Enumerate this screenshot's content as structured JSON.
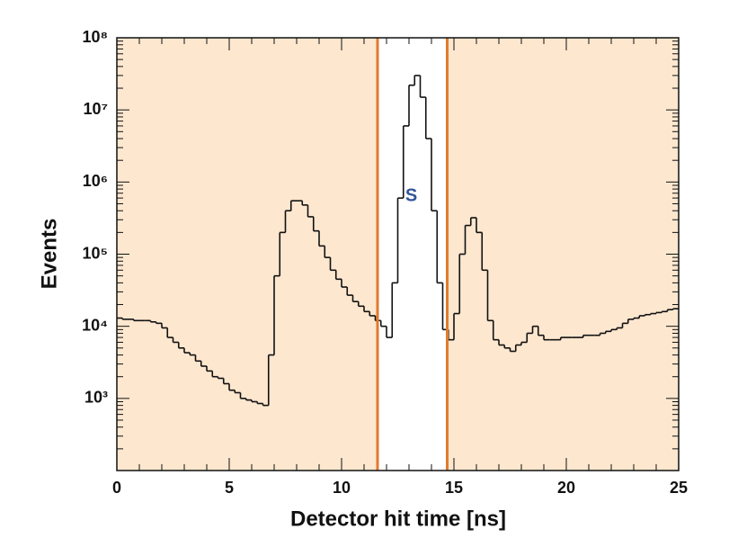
{
  "chart_data": {
    "type": "histogram",
    "xlabel": "Detector hit time [ns]",
    "ylabel": "Events",
    "yscale": "log",
    "xlim": [
      0,
      25
    ],
    "ylim": [
      100,
      100000000
    ],
    "xticks": [
      0,
      5,
      10,
      15,
      20,
      25
    ],
    "yticks": [
      {
        "value": 1000,
        "label": "10³"
      },
      {
        "value": 10000,
        "label": "10⁴"
      },
      {
        "value": 100000,
        "label": "10⁵"
      },
      {
        "value": 1000000,
        "label": "10⁶"
      },
      {
        "value": 10000000,
        "label": "10⁷"
      },
      {
        "value": 100000000,
        "label": "10⁸"
      }
    ],
    "color": "#111111",
    "shaded_regions": [
      [
        0,
        11.6
      ],
      [
        14.7,
        25
      ]
    ],
    "shade_color": "#fde7cf",
    "cut_lines": [
      11.6,
      14.7
    ],
    "cut_color": "#e07b30",
    "annotation": {
      "text": "S",
      "x": 13.1,
      "y": 630000,
      "color": "#2f5597"
    },
    "bins": [
      0,
      0.25,
      0.5,
      0.75,
      1,
      1.25,
      1.5,
      1.75,
      2,
      2.25,
      2.5,
      2.75,
      3,
      3.25,
      3.5,
      3.75,
      4,
      4.25,
      4.5,
      4.75,
      5,
      5.25,
      5.5,
      5.75,
      6,
      6.25,
      6.5,
      6.75,
      7,
      7.25,
      7.5,
      7.75,
      8,
      8.25,
      8.5,
      8.75,
      9,
      9.25,
      9.5,
      9.75,
      10,
      10.25,
      10.5,
      10.75,
      11,
      11.25,
      11.5,
      11.75,
      12,
      12.25,
      12.5,
      12.75,
      13,
      13.25,
      13.5,
      13.75,
      14,
      14.25,
      14.5,
      14.75,
      15,
      15.25,
      15.5,
      15.75,
      16,
      16.25,
      16.5,
      16.75,
      17,
      17.25,
      17.5,
      17.75,
      18,
      18.25,
      18.5,
      18.75,
      19,
      19.25,
      19.5,
      19.75,
      20,
      20.25,
      20.5,
      20.75,
      21,
      21.25,
      21.5,
      21.75,
      22,
      22.25,
      22.5,
      22.75,
      23,
      23.25,
      23.5,
      23.75,
      24,
      24.25,
      24.5,
      24.75,
      25
    ],
    "values": [
      13000,
      12500,
      12500,
      12000,
      12000,
      12000,
      11500,
      11000,
      9500,
      7000,
      6000,
      5000,
      4300,
      4000,
      3300,
      2800,
      2400,
      2000,
      1900,
      1600,
      1300,
      1200,
      1000,
      950,
      900,
      850,
      800,
      4000,
      50000,
      200000,
      400000,
      550000,
      550000,
      480000,
      330000,
      210000,
      130000,
      90000,
      60000,
      45000,
      35000,
      27000,
      22000,
      19000,
      16000,
      14000,
      12000,
      10000,
      7000,
      40000,
      600000,
      6000000,
      22000000,
      30000000,
      15000000,
      4000000,
      400000,
      40000,
      9000,
      6500,
      15000,
      100000,
      250000,
      320000,
      200000,
      60000,
      12000,
      6500,
      5500,
      5000,
      4500,
      5500,
      6000,
      8000,
      10000,
      7500,
      6500,
      6500,
      6500,
      7000,
      7000,
      7000,
      7000,
      7500,
      7500,
      7500,
      8000,
      8500,
      9000,
      9500,
      11000,
      12500,
      13000,
      14000,
      14500,
      15000,
      15500,
      16000,
      17000,
      17500
    ]
  }
}
